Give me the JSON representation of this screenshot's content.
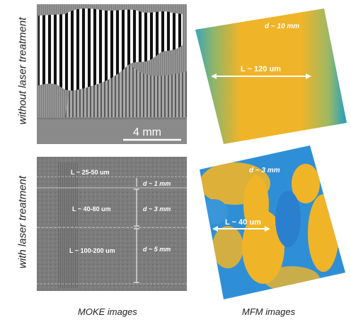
{
  "row_labels": {
    "top": "without laser treatment",
    "bottom": "with laser treatment"
  },
  "column_labels": {
    "left": "MOKE images",
    "right": "MFM images"
  },
  "moke_top": {
    "scale_bar": "4 mm"
  },
  "mfm_top": {
    "thickness": "d ~ 10 mm",
    "width": "L ~ 120 um"
  },
  "moke_bottom": {
    "rows": [
      {
        "width": "L ~ 25-50 um",
        "thickness": "d ~ 1 mm"
      },
      {
        "width": "L ~ 40-80 um",
        "thickness": "d ~ 3 mm"
      },
      {
        "width": "L ~ 100-200 um",
        "thickness": "d ~ 5 mm"
      }
    ]
  },
  "mfm_bottom": {
    "thickness": "d ~ 3 mm",
    "width": "L ~ 40 um"
  },
  "colors": {
    "domain_yellow": "#f0b428",
    "domain_blue": "#2f8fd6",
    "domain_teal": "#1aa7b4",
    "moke_gray": "#8a8a8a"
  }
}
